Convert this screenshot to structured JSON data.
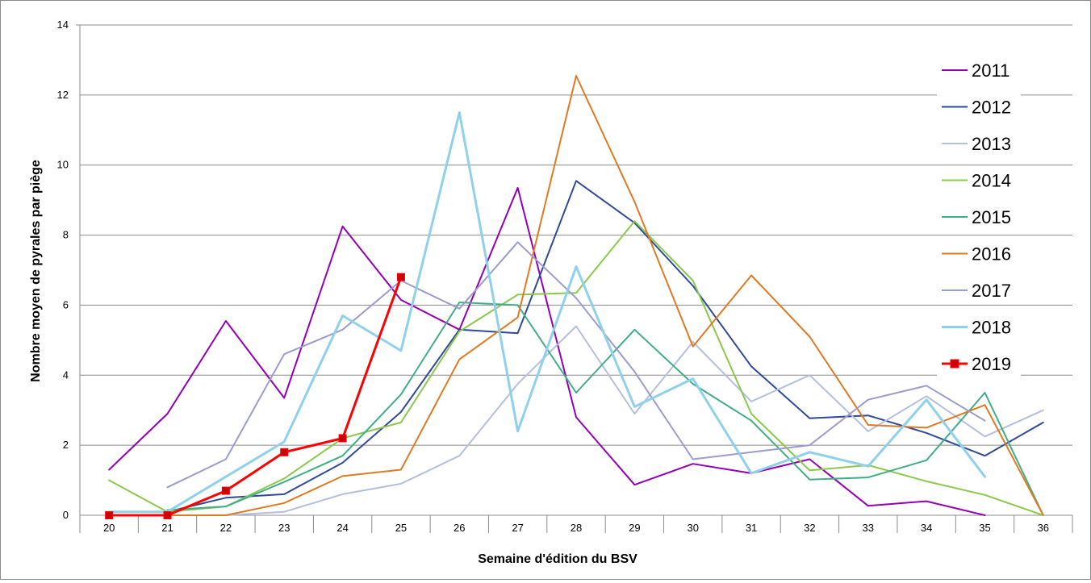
{
  "chart_data": {
    "type": "line",
    "title": "",
    "xlabel": "Semaine d'édition du BSV",
    "ylabel": "Nombre  moyen de pyrales par piège",
    "categories": [
      "20",
      "21",
      "22",
      "23",
      "24",
      "25",
      "26",
      "27",
      "28",
      "29",
      "30",
      "31",
      "32",
      "33",
      "34",
      "35",
      "36"
    ],
    "ylim": [
      0,
      14
    ],
    "yticks": [
      "0",
      "2",
      "4",
      "6",
      "8",
      "10",
      "12",
      "14"
    ],
    "grid": "horizontal",
    "legend": "right",
    "series": [
      {
        "name": "2011",
        "color": "#9400b8",
        "width": 2,
        "marker": false,
        "values": [
          1.3,
          2.9,
          5.55,
          3.35,
          8.25,
          6.15,
          5.3,
          9.35,
          2.8,
          0.87,
          1.47,
          1.2,
          1.6,
          0.27,
          0.4,
          0.0,
          null
        ]
      },
      {
        "name": "2012",
        "color": "#2f4a99",
        "width": 2,
        "marker": false,
        "values": [
          null,
          0.1,
          0.5,
          0.6,
          1.5,
          2.95,
          5.3,
          5.2,
          9.55,
          8.35,
          6.55,
          4.25,
          2.77,
          2.85,
          2.35,
          1.7,
          2.65
        ]
      },
      {
        "name": "2013",
        "color": "#b4bfe0",
        "width": 2,
        "marker": false,
        "values": [
          null,
          0.0,
          0.0,
          0.1,
          0.6,
          0.9,
          1.7,
          3.75,
          5.4,
          2.9,
          4.95,
          3.25,
          4.0,
          2.4,
          3.4,
          2.25,
          3.0
        ]
      },
      {
        "name": "2014",
        "color": "#8ac94a",
        "width": 2,
        "marker": false,
        "values": [
          1.0,
          0.1,
          0.25,
          1.05,
          2.2,
          2.65,
          5.25,
          6.3,
          6.35,
          8.4,
          6.7,
          2.9,
          1.28,
          1.43,
          0.97,
          0.58,
          0.0
        ]
      },
      {
        "name": "2015",
        "color": "#3fae86",
        "width": 2,
        "marker": false,
        "values": [
          null,
          0.15,
          0.25,
          0.95,
          1.7,
          3.45,
          6.08,
          6.0,
          3.5,
          5.3,
          3.75,
          2.7,
          1.02,
          1.08,
          1.57,
          3.5,
          0.0
        ]
      },
      {
        "name": "2016",
        "color": "#e07a22",
        "width": 2,
        "marker": false,
        "values": [
          null,
          0.0,
          0.0,
          0.35,
          1.12,
          1.3,
          4.45,
          5.65,
          12.55,
          8.95,
          4.82,
          6.85,
          5.1,
          2.58,
          2.5,
          3.15,
          0.0
        ]
      },
      {
        "name": "2017",
        "color": "#9b9bcf",
        "width": 2,
        "marker": false,
        "values": [
          null,
          0.8,
          1.6,
          4.6,
          5.3,
          6.7,
          5.9,
          7.8,
          6.2,
          4.1,
          1.6,
          1.8,
          2.0,
          3.3,
          3.7,
          2.7,
          null
        ]
      },
      {
        "name": "2018",
        "color": "#8fd1ec",
        "width": 3,
        "marker": false,
        "values": [
          0.1,
          0.1,
          1.1,
          2.1,
          5.7,
          4.7,
          11.5,
          2.4,
          7.1,
          3.1,
          3.9,
          1.2,
          1.8,
          1.4,
          3.3,
          1.1,
          null
        ]
      },
      {
        "name": "2019",
        "color": "#ff0000",
        "width": 3,
        "marker": true,
        "marker_color": "#cc0000",
        "values": [
          0.0,
          0.0,
          0.7,
          1.8,
          2.2,
          6.8,
          null,
          null,
          null,
          null,
          null,
          null,
          null,
          null,
          null,
          null,
          null
        ]
      }
    ]
  }
}
